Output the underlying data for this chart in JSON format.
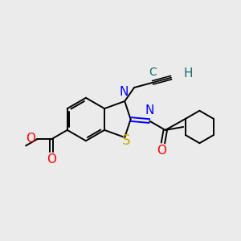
{
  "background_color": "#ebebeb",
  "atom_colors": {
    "C": "#1a6b6b",
    "N": "#0000ff",
    "S": "#ccaa00",
    "O": "#ff0000",
    "H": "#1a6b6b"
  },
  "bond_color": "#000000",
  "bond_width": 1.4,
  "font_size_atom": 10,
  "font_size_small": 9
}
